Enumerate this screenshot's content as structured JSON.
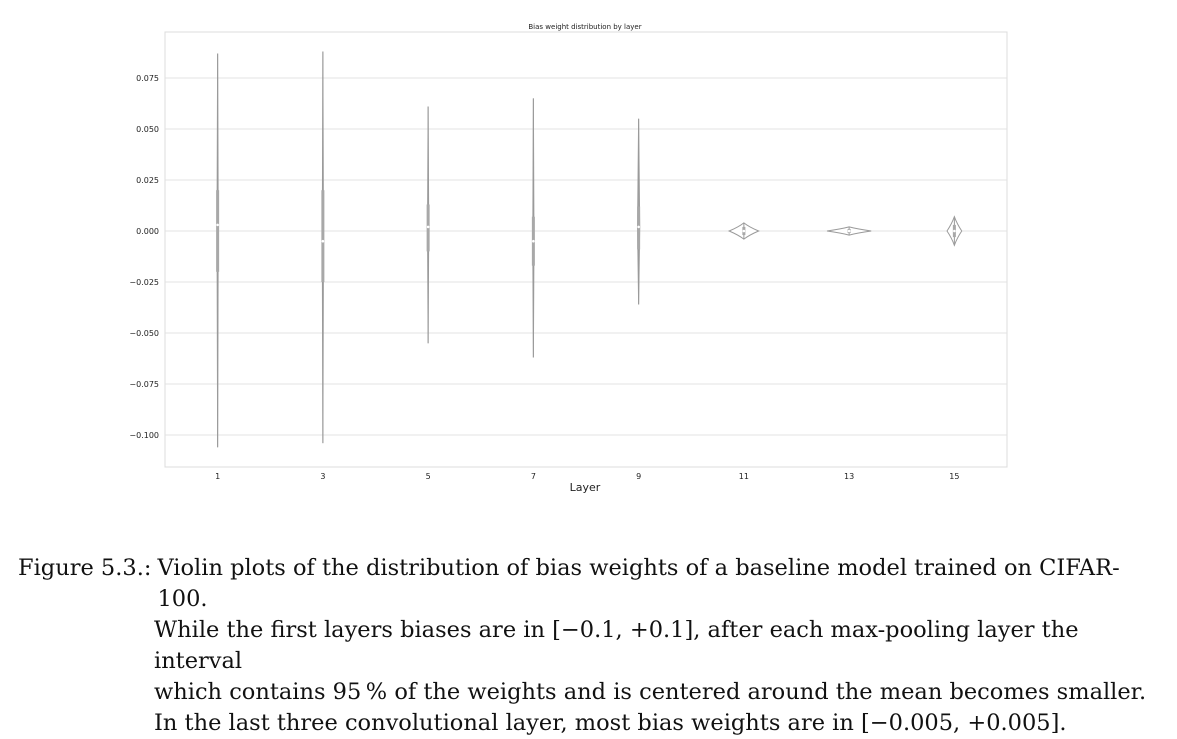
{
  "chart_data": {
    "type": "violin",
    "title": "Bias weight distribution by layer",
    "xlabel": "Layer",
    "ylabel": "",
    "categories": [
      "1",
      "3",
      "5",
      "7",
      "9",
      "11",
      "13",
      "15"
    ],
    "yticks": [
      "0.075",
      "0.050",
      "0.025",
      "0.000",
      "−0.025",
      "−0.050",
      "−0.075",
      "−0.100"
    ],
    "ylim": [
      -0.113,
      0.098
    ],
    "grid": true,
    "distributions": [
      {
        "layer": "1",
        "min": -0.106,
        "max": 0.087,
        "q1": -0.02,
        "median": 0.003,
        "q3": 0.02,
        "max_halfwidth": 0.0
      },
      {
        "layer": "3",
        "min": -0.104,
        "max": 0.088,
        "q1": -0.025,
        "median": -0.005,
        "q3": 0.02,
        "max_halfwidth": 0.0
      },
      {
        "layer": "5",
        "min": -0.055,
        "max": 0.061,
        "q1": -0.01,
        "median": 0.002,
        "q3": 0.013,
        "max_halfwidth": 0.01
      },
      {
        "layer": "7",
        "min": -0.062,
        "max": 0.065,
        "q1": -0.017,
        "median": -0.005,
        "q3": 0.007,
        "max_halfwidth": 0.01
      },
      {
        "layer": "9",
        "min": -0.036,
        "max": 0.055,
        "q1": -0.009,
        "median": 0.002,
        "q3": 0.012,
        "max_halfwidth": 0.02
      },
      {
        "layer": "11",
        "min": -0.004,
        "max": 0.004,
        "q1": -0.002,
        "median": 0.0,
        "q3": 0.002,
        "max_halfwidth": 0.28
      },
      {
        "layer": "13",
        "min": -0.002,
        "max": 0.002,
        "q1": -0.001,
        "median": 0.0,
        "q3": 0.001,
        "max_halfwidth": 0.42
      },
      {
        "layer": "15",
        "min": -0.007,
        "max": 0.007,
        "q1": -0.003,
        "median": 0.0,
        "q3": 0.003,
        "max_halfwidth": 0.14
      }
    ]
  },
  "caption": {
    "label": "Figure 5.3.:",
    "lines": [
      "Violin plots of the distribution of bias weights of a baseline model trained on CIFAR-100.",
      "While the first layers biases are in [−0.1, +0.1], after each max-pooling layer the interval",
      "which contains 95 % of the weights and is centered around the mean becomes smaller.",
      "In the last three convolutional layer, most bias weights are in [−0.005, +0.005]."
    ]
  },
  "colors": {
    "violin_stroke": "#9a9a9a",
    "box_fill": "#a8a8a8",
    "grid": "#e3e3e3",
    "frame": "#dcdcdc",
    "tick_text": "#222222"
  }
}
